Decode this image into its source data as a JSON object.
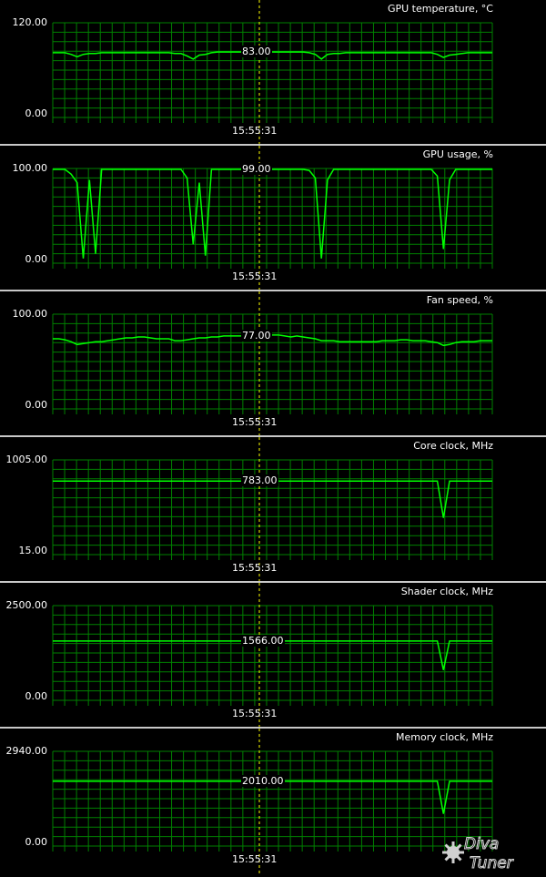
{
  "time_label": "15:55:31",
  "colors": {
    "background": "#000000",
    "grid": "#008000",
    "line": "#00ff00",
    "cursor": "#ffff00",
    "text": "#ffffff",
    "divider": "#c8c8c8"
  },
  "watermark": {
    "text": "Diva Tuner",
    "icon": "gear-icon"
  },
  "chart_data": [
    {
      "type": "line",
      "title": "GPU temperature, °C",
      "ylim": [
        0,
        120
      ],
      "ymax_label": "120.00",
      "ymin_label": "0.00",
      "current_label": "83.00",
      "current_value": 83,
      "x_label": "15:55:31",
      "series": [
        {
          "values": [
            82,
            82,
            82,
            80,
            77,
            80,
            81,
            81,
            82,
            82,
            82,
            82,
            82,
            82,
            82,
            82,
            82,
            82,
            82,
            82,
            81,
            81,
            78,
            74,
            79,
            80,
            82,
            83,
            83,
            83,
            83,
            83,
            83,
            83,
            83,
            83,
            83,
            83,
            83,
            83,
            83,
            83,
            82,
            80,
            74,
            80,
            81,
            81,
            82,
            82,
            82,
            82,
            82,
            82,
            82,
            82,
            82,
            82,
            82,
            82,
            82,
            82,
            82,
            80,
            76,
            79,
            80,
            81,
            82,
            82,
            82,
            82,
            82
          ]
        }
      ]
    },
    {
      "type": "line",
      "title": "GPU usage, %",
      "ylim": [
        0,
        100
      ],
      "ymax_label": "100.00",
      "ymin_label": "0.00",
      "current_label": "99.00",
      "current_value": 99,
      "x_label": "15:55:31",
      "series": [
        {
          "values": [
            99,
            99,
            99,
            94,
            85,
            5,
            88,
            10,
            99,
            99,
            99,
            99,
            99,
            99,
            99,
            99,
            99,
            99,
            99,
            99,
            99,
            99,
            90,
            20,
            85,
            8,
            99,
            99,
            99,
            99,
            99,
            99,
            99,
            99,
            99,
            99,
            99,
            99,
            99,
            99,
            99,
            99,
            98,
            90,
            5,
            88,
            99,
            99,
            99,
            99,
            99,
            99,
            99,
            99,
            99,
            99,
            99,
            99,
            99,
            99,
            99,
            99,
            99,
            92,
            15,
            88,
            99,
            99,
            99,
            99,
            99,
            99,
            99
          ]
        }
      ]
    },
    {
      "type": "line",
      "title": "Fan speed, %",
      "ylim": [
        0,
        100
      ],
      "ymax_label": "100.00",
      "ymin_label": "0.00",
      "current_label": "77.00",
      "current_value": 77,
      "x_label": "15:55:31",
      "series": [
        {
          "values": [
            74,
            74,
            73,
            71,
            68,
            69,
            70,
            71,
            71,
            72,
            73,
            74,
            75,
            75,
            76,
            76,
            75,
            74,
            74,
            74,
            72,
            72,
            73,
            74,
            75,
            75,
            76,
            76,
            77,
            77,
            77,
            77,
            77,
            77,
            77,
            77,
            78,
            78,
            77,
            76,
            77,
            76,
            75,
            74,
            72,
            72,
            72,
            71,
            71,
            71,
            71,
            71,
            71,
            71,
            72,
            72,
            72,
            73,
            73,
            72,
            72,
            72,
            71,
            70,
            67,
            68,
            70,
            71,
            71,
            71,
            72,
            72,
            72
          ]
        }
      ]
    },
    {
      "type": "line",
      "title": "Core clock, MHz",
      "ylim": [
        15,
        1005
      ],
      "ymax_label": "1005.00",
      "ymin_label": "15.00",
      "current_label": "783.00",
      "current_value": 783,
      "x_label": "15:55:31",
      "series": [
        {
          "values": [
            783,
            783,
            783,
            783,
            783,
            783,
            783,
            783,
            783,
            783,
            783,
            783,
            783,
            783,
            783,
            783,
            783,
            783,
            783,
            783,
            783,
            783,
            783,
            783,
            783,
            783,
            783,
            783,
            783,
            783,
            783,
            783,
            783,
            783,
            783,
            783,
            783,
            783,
            783,
            783,
            783,
            783,
            783,
            783,
            783,
            783,
            783,
            783,
            783,
            783,
            783,
            783,
            783,
            783,
            783,
            783,
            783,
            783,
            783,
            783,
            783,
            783,
            783,
            783,
            400,
            783,
            783,
            783,
            783,
            783,
            783,
            783,
            783
          ]
        }
      ]
    },
    {
      "type": "line",
      "title": "Shader clock, MHz",
      "ylim": [
        0,
        2500
      ],
      "ymax_label": "2500.00",
      "ymin_label": "0.00",
      "current_label": "1566.00",
      "current_value": 1566,
      "x_label": "15:55:31",
      "series": [
        {
          "values": [
            1566,
            1566,
            1566,
            1566,
            1566,
            1566,
            1566,
            1566,
            1566,
            1566,
            1566,
            1566,
            1566,
            1566,
            1566,
            1566,
            1566,
            1566,
            1566,
            1566,
            1566,
            1566,
            1566,
            1566,
            1566,
            1566,
            1566,
            1566,
            1566,
            1566,
            1566,
            1566,
            1566,
            1566,
            1566,
            1566,
            1566,
            1566,
            1566,
            1566,
            1566,
            1566,
            1566,
            1566,
            1566,
            1566,
            1566,
            1566,
            1566,
            1566,
            1566,
            1566,
            1566,
            1566,
            1566,
            1566,
            1566,
            1566,
            1566,
            1566,
            1566,
            1566,
            1566,
            1566,
            800,
            1566,
            1566,
            1566,
            1566,
            1566,
            1566,
            1566,
            1566
          ]
        }
      ]
    },
    {
      "type": "line",
      "title": "Memory clock, MHz",
      "ylim": [
        0,
        2940
      ],
      "ymax_label": "2940.00",
      "ymin_label": "0.00",
      "current_label": "2010.00",
      "current_value": 2010,
      "x_label": "15:55:31",
      "series": [
        {
          "values": [
            2010,
            2010,
            2010,
            2010,
            2010,
            2010,
            2010,
            2010,
            2010,
            2010,
            2010,
            2010,
            2010,
            2010,
            2010,
            2010,
            2010,
            2010,
            2010,
            2010,
            2010,
            2010,
            2010,
            2010,
            2010,
            2010,
            2010,
            2010,
            2010,
            2010,
            2010,
            2010,
            2010,
            2010,
            2010,
            2010,
            2010,
            2010,
            2010,
            2010,
            2010,
            2010,
            2010,
            2010,
            2010,
            2010,
            2010,
            2010,
            2010,
            2010,
            2010,
            2010,
            2010,
            2010,
            2010,
            2010,
            2010,
            2010,
            2010,
            2010,
            2010,
            2010,
            2010,
            2010,
            1000,
            2010,
            2010,
            2010,
            2010,
            2010,
            2010,
            2010,
            2010
          ]
        }
      ]
    }
  ]
}
